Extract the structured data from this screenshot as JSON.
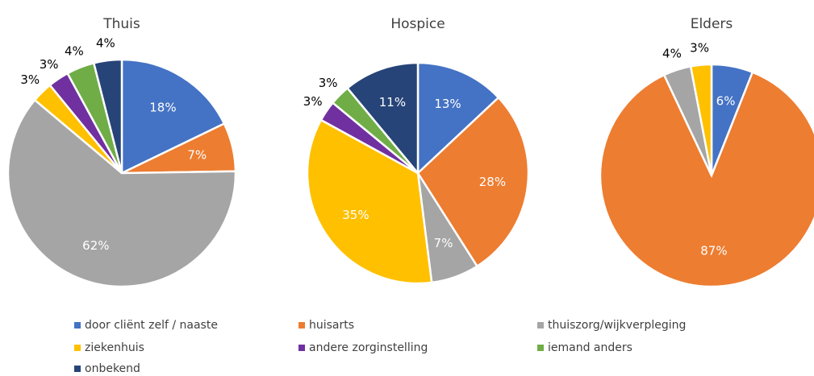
{
  "legend": {
    "names": [
      "door cliënt zelf / naaste",
      "huisarts",
      "thuiszorg/wijkverpleging",
      "ziekenhuis",
      "andere zorginstelling",
      "iemand anders",
      "onbekend"
    ],
    "colors": [
      "#4472c4",
      "#ed7d31",
      "#a5a5a5",
      "#ffc000",
      "#7030a0",
      "#70ad47",
      "#264478"
    ]
  },
  "chart_data": [
    {
      "type": "pie",
      "title": "Thuis",
      "values": [
        18,
        7,
        62,
        3,
        3,
        4,
        4
      ],
      "value_labels": [
        "18%",
        "7%",
        "62%",
        "3%",
        "3%",
        "4%",
        "4%"
      ]
    },
    {
      "type": "pie",
      "title": "Hospice",
      "values": [
        13,
        28,
        7,
        35,
        3,
        3,
        11
      ],
      "value_labels": [
        "13%",
        "28%",
        "7%",
        "35%",
        "3%",
        "3%",
        "11%"
      ]
    },
    {
      "type": "pie",
      "title": "Elders",
      "values": [
        6,
        87,
        4,
        3,
        0,
        0,
        0
      ],
      "value_labels": [
        "6%",
        "87%",
        "4%",
        "3%",
        null,
        null,
        null
      ]
    }
  ]
}
